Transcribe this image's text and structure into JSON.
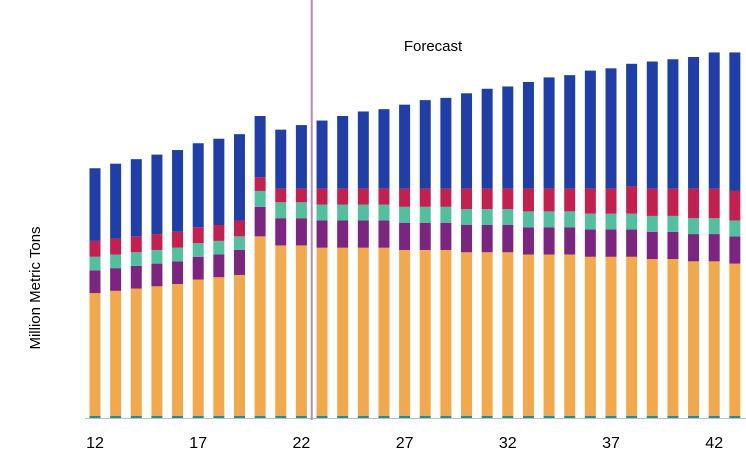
{
  "chart_data": {
    "type": "bar",
    "stacked": true,
    "title": "",
    "ylabel": "Million Metric Tons",
    "xlabel": "",
    "annotation": "Forecast",
    "forecast_start": 23,
    "x": [
      12,
      13,
      14,
      15,
      16,
      17,
      18,
      19,
      20,
      21,
      22,
      23,
      24,
      25,
      26,
      27,
      28,
      29,
      30,
      31,
      32,
      33,
      34,
      35,
      36,
      37,
      38,
      39,
      40,
      41,
      42,
      43
    ],
    "xticks": [
      12,
      17,
      22,
      27,
      32,
      37,
      42
    ],
    "ylim": [
      0,
      170
    ],
    "grid": false,
    "legend": "none",
    "colors": [
      "#2a8a8c",
      "#f2a94c",
      "#7b2480",
      "#52bf9e",
      "#c4204f",
      "#1f3ea8"
    ],
    "series": [
      {
        "values": [
          1,
          1,
          1,
          1,
          1,
          1,
          1,
          1,
          1,
          1,
          1,
          1,
          1,
          1,
          1,
          1,
          1,
          1,
          1,
          1,
          1,
          1,
          1,
          1,
          1,
          1,
          1,
          1,
          1,
          1,
          1,
          1
        ]
      },
      {
        "values": [
          54,
          55,
          56,
          57,
          58,
          60,
          61,
          62,
          79,
          75,
          75,
          74,
          74,
          74,
          74,
          73,
          73,
          73,
          72,
          72,
          72,
          71,
          71,
          71,
          70,
          70,
          70,
          69,
          69,
          68,
          68,
          67
        ]
      },
      {
        "values": [
          10,
          10,
          10,
          10,
          10,
          10,
          10,
          11,
          13,
          12,
          12,
          12,
          12,
          12,
          12,
          12,
          12,
          12,
          12,
          12,
          12,
          12,
          12,
          12,
          12,
          12,
          12,
          12,
          12,
          12,
          12,
          12
        ]
      },
      {
        "values": [
          6,
          6,
          6,
          6,
          6,
          6,
          6,
          6,
          7,
          7,
          7,
          7,
          7,
          7,
          7,
          7,
          7,
          7,
          7,
          7,
          7,
          7,
          7,
          7,
          7,
          7,
          7,
          7,
          7,
          7,
          7,
          7
        ]
      },
      {
        "values": [
          7,
          7,
          7,
          7,
          7,
          7,
          7,
          7,
          6,
          6,
          6,
          7,
          7,
          7,
          7,
          8,
          8,
          8,
          9,
          9,
          9,
          10,
          10,
          10,
          11,
          11,
          12,
          12,
          12,
          13,
          13,
          13
        ]
      },
      {
        "values": [
          32,
          33,
          34,
          35,
          36,
          37,
          38,
          38,
          27,
          26,
          28,
          30,
          32,
          34,
          35,
          37,
          39,
          40,
          42,
          44,
          45,
          47,
          49,
          50,
          52,
          53,
          54,
          56,
          57,
          58,
          60,
          61
        ]
      }
    ]
  }
}
